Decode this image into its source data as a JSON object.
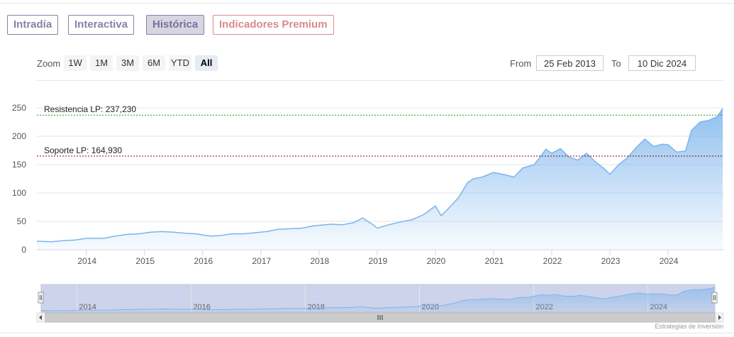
{
  "tabs": [
    {
      "label": "Intradía"
    },
    {
      "label": "Interactiva"
    },
    {
      "label": "Histórica"
    },
    {
      "label": "Indicadores Premium"
    }
  ],
  "zoom": {
    "label": "Zoom",
    "buttons": [
      "1W",
      "1M",
      "3M",
      "6M",
      "YTD",
      "All"
    ],
    "active": "All"
  },
  "range": {
    "from_label": "From",
    "from_value": "25 Feb 2013",
    "to_label": "To",
    "to_value": "10 Dic 2024"
  },
  "credit": "Estrategias de Inversión",
  "colors": {
    "line": "#7cb5ec",
    "area_top": "#7cb5ec",
    "resistance": "#2e8b2e",
    "support": "#8b0000",
    "navigator_mask": "#cdd3ea"
  },
  "chart_data": {
    "type": "area",
    "x_unit": "year",
    "ylim": [
      0,
      250
    ],
    "yticks": [
      0,
      50,
      100,
      150,
      200,
      250
    ],
    "xticks": [
      "2014",
      "2015",
      "2016",
      "2017",
      "2018",
      "2019",
      "2020",
      "2021",
      "2022",
      "2023",
      "2024"
    ],
    "grid": true,
    "series": [
      {
        "x": [
          2013.15,
          2013.4,
          2013.6,
          2013.8,
          2014.0,
          2014.3,
          2014.5,
          2014.7,
          2014.9,
          2015.1,
          2015.3,
          2015.5,
          2015.7,
          2015.9,
          2016.0,
          2016.15,
          2016.3,
          2016.5,
          2016.7,
          2016.9,
          2017.1,
          2017.3,
          2017.5,
          2017.7,
          2017.9,
          2018.0,
          2018.2,
          2018.4,
          2018.6,
          2018.75,
          2018.9,
          2019.0,
          2019.2,
          2019.4,
          2019.6,
          2019.8,
          2020.0,
          2020.1,
          2020.2,
          2020.4,
          2020.55,
          2020.65,
          2020.8,
          2021.0,
          2021.2,
          2021.35,
          2021.5,
          2021.7,
          2021.9,
          2022.0,
          2022.15,
          2022.3,
          2022.45,
          2022.6,
          2022.75,
          2022.9,
          2023.0,
          2023.15,
          2023.3,
          2023.45,
          2023.6,
          2023.75,
          2023.9,
          2024.0,
          2024.15,
          2024.3,
          2024.4,
          2024.55,
          2024.7,
          2024.85,
          2024.94
        ],
        "y": [
          15,
          14,
          16,
          17,
          20,
          20,
          24,
          27,
          28,
          31,
          32,
          31,
          29,
          28,
          26,
          24,
          25,
          28,
          28,
          30,
          32,
          36,
          37,
          38,
          42,
          43,
          45,
          44,
          48,
          56,
          46,
          38,
          44,
          49,
          53,
          62,
          77,
          60,
          70,
          92,
          118,
          125,
          128,
          136,
          132,
          128,
          144,
          150,
          177,
          170,
          178,
          163,
          158,
          170,
          155,
          143,
          133,
          150,
          162,
          180,
          195,
          182,
          186,
          185,
          172,
          174,
          210,
          225,
          228,
          235,
          249
        ]
      }
    ],
    "annotations": [
      {
        "label": "Resistencia LP: 237,230",
        "value": 237.23
      },
      {
        "label": "Soporte LP: 164,930",
        "value": 164.93
      }
    ],
    "navigator": {
      "xticks": [
        "2014",
        "2016",
        "2018",
        "2020",
        "2022",
        "2024"
      ]
    }
  }
}
